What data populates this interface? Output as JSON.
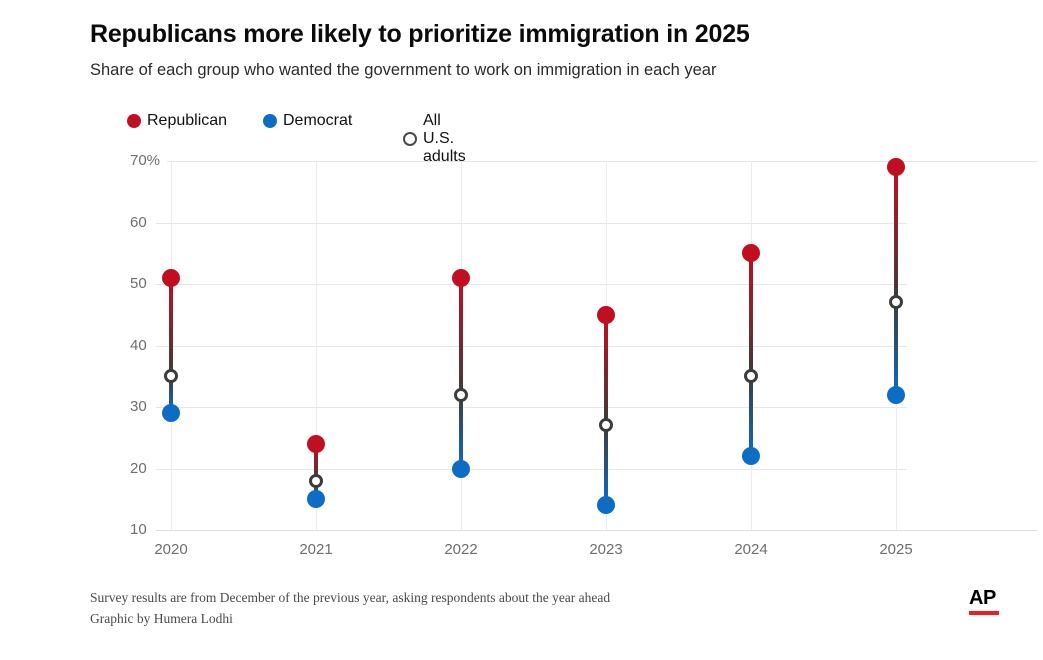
{
  "header": {
    "title": "Republicans more likely to prioritize immigration in 2025",
    "subtitle": "Share of each group who wanted the government to work on immigration in each year"
  },
  "legend": {
    "items": [
      {
        "label": "Republican",
        "color": "#c10e21",
        "style": "filled"
      },
      {
        "label": "Democrat",
        "color": "#0d6cc4",
        "style": "filled"
      },
      {
        "label": "All U.S. adults",
        "color": "#3c3c3c",
        "style": "open"
      }
    ]
  },
  "chart_data": {
    "type": "dumbbell",
    "categories": [
      "2020",
      "2021",
      "2022",
      "2023",
      "2024",
      "2025"
    ],
    "series": [
      {
        "name": "Republican",
        "color": "#c10e21",
        "marker": "filled",
        "values": [
          51,
          24,
          51,
          45,
          55,
          69
        ]
      },
      {
        "name": "Democrat",
        "color": "#0d6cc4",
        "marker": "filled",
        "values": [
          29,
          15,
          20,
          14,
          22,
          32
        ]
      },
      {
        "name": "All U.S. adults",
        "color": "#3c3c3c",
        "marker": "open",
        "values": [
          35,
          18,
          32,
          27,
          35,
          47
        ]
      }
    ],
    "ylim": [
      10,
      70
    ],
    "yticks": [
      10,
      20,
      30,
      40,
      50,
      60,
      70
    ],
    "ytick_labels": [
      "10",
      "20",
      "30",
      "40",
      "50",
      "60",
      "70%"
    ],
    "grid": true,
    "legend_position": "top",
    "connector_colors": {
      "top": "#c10e21",
      "mid": "#3c3c3c",
      "bottom": "#0d6cc4"
    }
  },
  "footer": {
    "note": "Survey results are from December of the previous year, asking respondents about the year ahead",
    "credit": "Graphic by Humera Lodhi"
  },
  "logo": {
    "text": "AP",
    "bar_color": "#ee1c25"
  }
}
